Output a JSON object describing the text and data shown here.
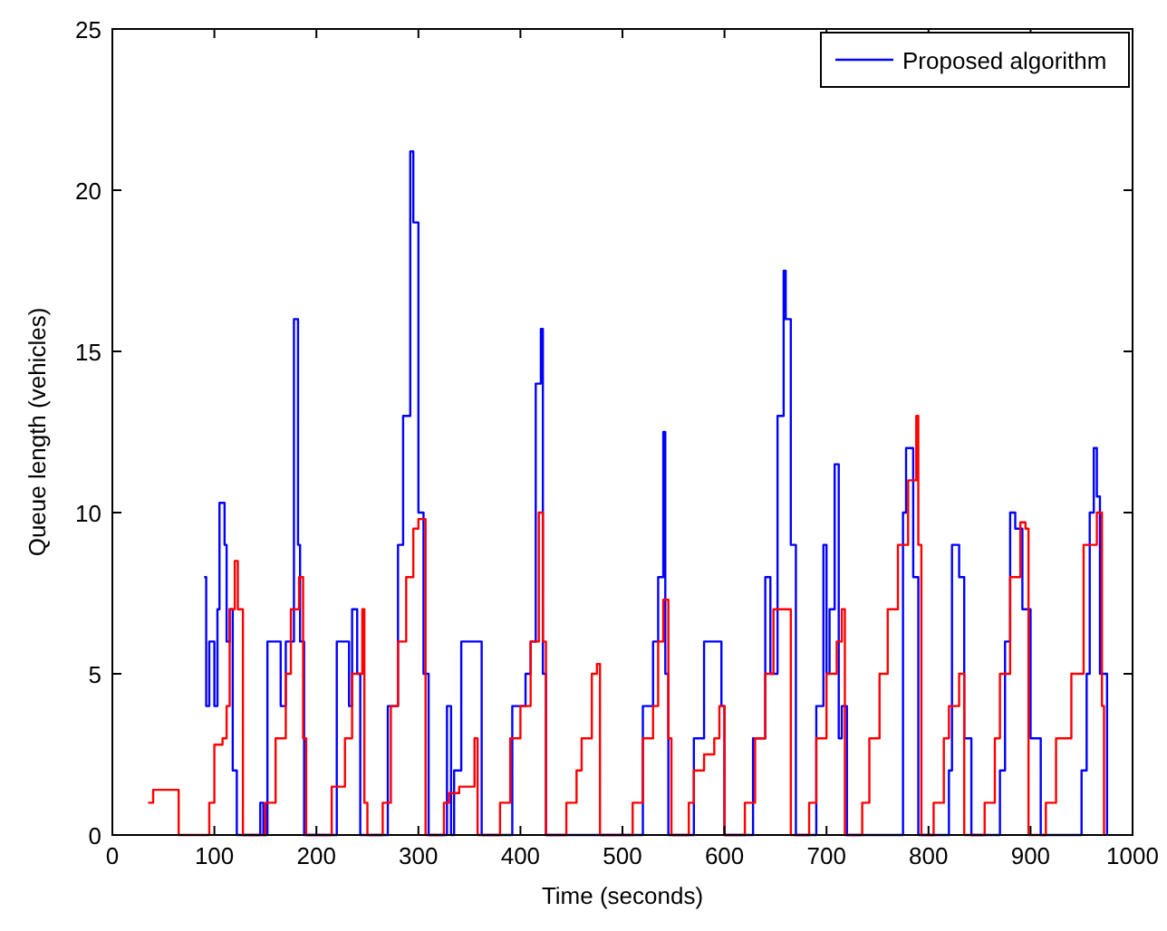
{
  "chart_data": {
    "type": "step",
    "xlabel": "Time (seconds)",
    "ylabel": "Queue length (vehicles)",
    "xlim": [
      0,
      1000
    ],
    "ylim": [
      0,
      25
    ],
    "xticks": [
      0,
      100,
      200,
      300,
      400,
      500,
      600,
      700,
      800,
      900,
      1000
    ],
    "yticks": [
      0,
      5,
      10,
      15,
      20,
      25
    ],
    "legend": "top right",
    "grid": false,
    "series": [
      {
        "name": "Proposed algorithm",
        "color": "#0000ff",
        "x": [
          90,
          92,
          95,
          100,
          103,
          105,
          110,
          112,
          115,
          118,
          122,
          125,
          145,
          148,
          152,
          165,
          170,
          178,
          182,
          184,
          188,
          220,
          232,
          235,
          240,
          243,
          250,
          270,
          280,
          285,
          292,
          295,
          300,
          305,
          310,
          328,
          332,
          335,
          342,
          362,
          392,
          405,
          410,
          415,
          420,
          422,
          425,
          520,
          530,
          535,
          540,
          542,
          545,
          570,
          580,
          597,
          600,
          605,
          628,
          640,
          645,
          652,
          658,
          660,
          665,
          670,
          690,
          697,
          700,
          703,
          708,
          712,
          715,
          720,
          775,
          778,
          785,
          790,
          820,
          823,
          830,
          835,
          842,
          870,
          875,
          880,
          885,
          892,
          900,
          910,
          950,
          955,
          958,
          962,
          965,
          968,
          975
        ],
        "values": [
          8,
          4,
          6,
          4,
          7,
          10.3,
          9,
          6,
          7,
          2,
          0,
          0,
          1,
          0,
          6,
          4,
          6,
          16,
          9,
          6,
          0,
          6,
          4,
          7,
          5,
          0,
          0,
          4,
          9,
          13,
          21.2,
          19,
          10,
          5,
          0,
          4,
          0,
          2,
          6,
          0,
          4,
          5,
          6,
          14,
          15.7,
          5,
          0,
          4,
          6,
          8,
          12.5,
          5,
          0,
          3,
          6,
          4,
          0,
          0,
          3,
          8,
          5,
          13,
          17.5,
          16,
          9,
          0,
          4,
          9,
          5,
          7,
          11.5,
          3,
          4,
          0,
          10,
          12,
          8,
          0,
          2,
          9,
          8,
          3,
          0,
          2,
          6,
          10,
          9.5,
          7,
          3,
          0,
          2,
          5,
          10,
          12,
          10.5,
          5,
          0
        ]
      },
      {
        "color": "#ff0000",
        "x": [
          35,
          40,
          62,
          65,
          95,
          100,
          108,
          112,
          115,
          120,
          123,
          128,
          150,
          160,
          170,
          175,
          183,
          187,
          190,
          215,
          228,
          235,
          245,
          247,
          250,
          265,
          273,
          280,
          288,
          295,
          300,
          307,
          325,
          330,
          340,
          355,
          358,
          380,
          390,
          400,
          410,
          418,
          422,
          425,
          445,
          455,
          460,
          470,
          475,
          478,
          510,
          520,
          530,
          535,
          540,
          545,
          548,
          565,
          570,
          580,
          590,
          595,
          600,
          620,
          630,
          640,
          648,
          665,
          683,
          690,
          700,
          710,
          715,
          718,
          735,
          742,
          752,
          760,
          770,
          780,
          788,
          790,
          793,
          805,
          815,
          820,
          830,
          835,
          855,
          865,
          870,
          880,
          890,
          895,
          898,
          915,
          925,
          940,
          952,
          965,
          970,
          972
        ],
        "values": [
          1,
          1.4,
          1.4,
          0,
          1,
          2.8,
          3,
          4,
          7,
          8.5,
          7,
          0,
          1,
          3,
          5,
          7,
          8,
          3,
          0,
          1.5,
          3,
          5,
          7,
          1,
          0,
          1,
          4,
          6,
          8,
          9.5,
          9.8,
          0,
          1,
          1.3,
          1.5,
          3,
          0,
          1,
          3,
          4,
          6,
          10,
          6,
          0,
          1,
          2,
          3,
          5,
          5.3,
          0,
          1,
          3,
          4,
          6,
          7.3,
          3,
          0,
          1,
          2,
          2.5,
          3,
          4,
          0,
          1,
          3,
          5,
          7,
          0,
          1,
          3,
          5,
          6,
          7,
          0,
          1,
          3,
          5,
          7,
          9,
          11,
          13,
          9,
          0,
          1,
          3,
          4,
          5,
          0,
          1,
          3,
          5,
          8,
          9.7,
          9.5,
          0,
          1,
          3,
          5,
          9,
          10,
          4,
          0
        ]
      }
    ]
  }
}
